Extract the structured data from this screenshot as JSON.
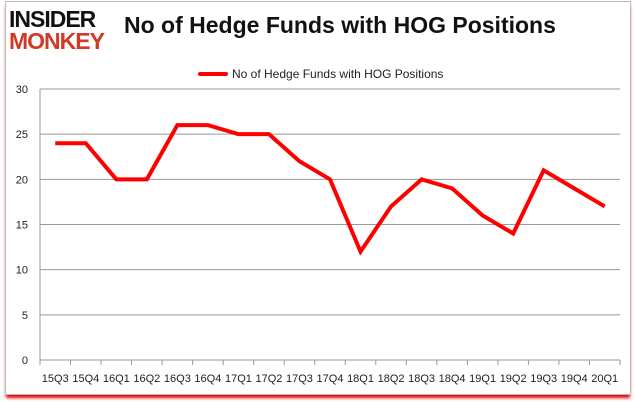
{
  "logo": {
    "line1": "INSIDER",
    "line2": "MONKEY"
  },
  "chart_data": {
    "type": "line",
    "title": "No of Hedge Funds with HOG Positions",
    "categories": [
      "15Q3",
      "15Q4",
      "16Q1",
      "16Q2",
      "16Q3",
      "16Q4",
      "17Q1",
      "17Q2",
      "17Q3",
      "17Q4",
      "18Q1",
      "18Q2",
      "18Q3",
      "18Q4",
      "19Q1",
      "19Q2",
      "19Q3",
      "19Q4",
      "20Q1"
    ],
    "series": [
      {
        "name": "No of Hedge Funds with HOG Positions",
        "values": [
          24,
          24,
          20,
          20,
          26,
          26,
          25,
          25,
          22,
          20,
          12,
          17,
          20,
          19,
          16,
          14,
          21,
          19,
          17
        ],
        "color": "#ff0000"
      }
    ],
    "ylim": [
      0,
      30
    ],
    "yticks": [
      0,
      5,
      10,
      15,
      20,
      25,
      30
    ],
    "grid": true,
    "legend": "top"
  }
}
